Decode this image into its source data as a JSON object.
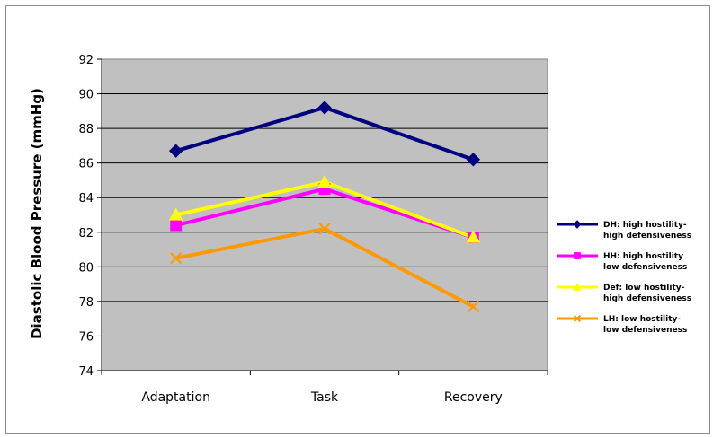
{
  "chart_data": {
    "type": "line",
    "title": "",
    "xlabel": "",
    "ylabel": "Diastolic Blood Pressure (mmHg)",
    "categories": [
      "Adaptation",
      "Task",
      "Recovery"
    ],
    "ylim": [
      74,
      92
    ],
    "yticks": [
      74,
      76,
      78,
      80,
      82,
      84,
      86,
      88,
      90,
      92
    ],
    "grid": true,
    "plot_background": "#c0c0c0",
    "legend_position": "right",
    "series": [
      {
        "name": "DH: high hostility-high defensiveness",
        "name_lines": [
          "DH: high hostility-",
          "high defensiveness"
        ],
        "values": [
          86.7,
          89.2,
          86.2
        ],
        "color": "#000080",
        "marker": "diamond"
      },
      {
        "name": "HH: high hostility low defensiveness",
        "name_lines": [
          "HH: high hostility",
          "low defensiveness"
        ],
        "values": [
          82.4,
          84.5,
          81.7
        ],
        "color": "#ff00ff",
        "marker": "square"
      },
      {
        "name": "Def: low hostility-high defensiveness",
        "name_lines": [
          "Def: low hostility-",
          "high defensiveness"
        ],
        "values": [
          83.0,
          84.9,
          81.7
        ],
        "color": "#ffff00",
        "marker": "triangle"
      },
      {
        "name": "LH: low hostility-low defensiveness",
        "name_lines": [
          "LH: low hostility-",
          "low defensiveness"
        ],
        "values": [
          80.5,
          82.2,
          77.7
        ],
        "color": "#ff9900",
        "marker": "x"
      }
    ]
  }
}
